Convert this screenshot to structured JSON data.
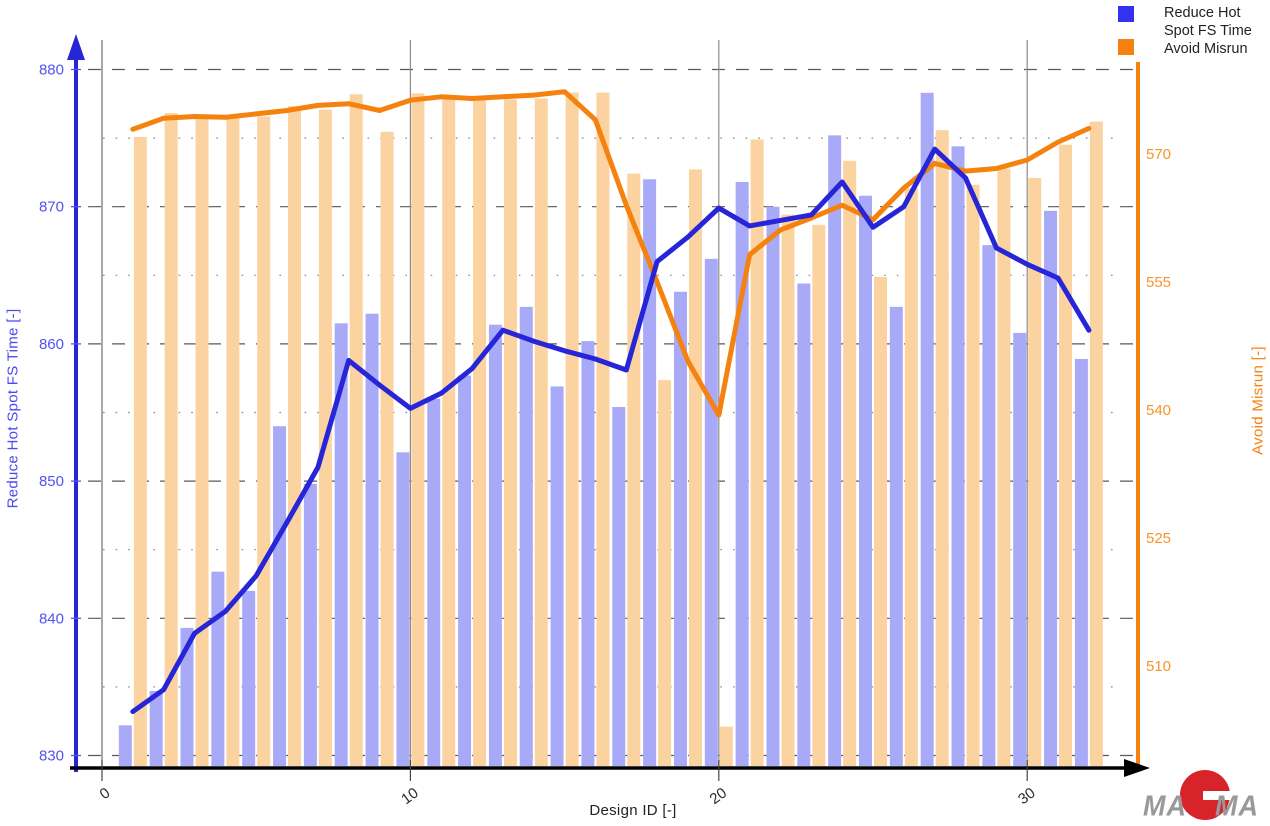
{
  "chart_data": {
    "type": "bar",
    "title": "",
    "xlabel": "Design ID [-]",
    "x_tick_labels": [
      "0",
      "10",
      "20",
      "30"
    ],
    "x_tick_values": [
      0,
      10,
      20,
      30
    ],
    "x": [
      1,
      2,
      3,
      4,
      5,
      6,
      7,
      8,
      9,
      10,
      11,
      12,
      13,
      14,
      15,
      16,
      17,
      18,
      19,
      20,
      21,
      22,
      23,
      24,
      25,
      26,
      27,
      28,
      29,
      30,
      31,
      32
    ],
    "left_axis": {
      "label": "Reduce Hot Spot FS Time [-]",
      "tick_labels": [
        "880",
        "870",
        "860",
        "850",
        "840",
        "830"
      ],
      "ticks": [
        880,
        870,
        860,
        850,
        840,
        830
      ],
      "minor_ticks": [
        875,
        865,
        855,
        845,
        835
      ],
      "ylim": [
        829,
        881
      ],
      "color": "#4a4af0"
    },
    "right_axis": {
      "label": "Avoid Misrun [-]",
      "tick_labels": [
        "570",
        "555",
        "540",
        "525",
        "510"
      ],
      "ticks": [
        570,
        555,
        540,
        525,
        510
      ],
      "ylim": [
        498,
        581
      ],
      "color": "#f5820f"
    },
    "grid": "major-dashed, minor-dotted, vertical at x ticks",
    "series": [
      {
        "name": "Reduce Hot Spot FS Time",
        "type": "bar",
        "axis": "left",
        "color": "#a9aaf7",
        "values": [
          832.2,
          834.7,
          839.3,
          843.4,
          842.0,
          854.0,
          849.8,
          861.5,
          862.2,
          852.1,
          856.0,
          857.7,
          861.4,
          862.7,
          856.9,
          860.2,
          855.4,
          872.0,
          863.8,
          866.2,
          871.8,
          870.0,
          864.4,
          875.2,
          870.8,
          862.7,
          878.3,
          874.4,
          867.2,
          860.8,
          869.7,
          858.9
        ]
      },
      {
        "name": "Reduce Hot Spot FS Time trend",
        "type": "line",
        "axis": "left",
        "color": "#2626d8",
        "values": [
          833.2,
          834.8,
          838.9,
          840.5,
          843.1,
          847.0,
          851.0,
          858.8,
          857.0,
          855.3,
          856.4,
          858.2,
          861.0,
          860.2,
          859.5,
          858.9,
          858.1,
          866.0,
          867.8,
          869.9,
          868.6,
          869.0,
          869.4,
          871.8,
          868.5,
          870.0,
          874.2,
          872.1,
          867.0,
          865.8,
          864.8,
          861.0
        ]
      },
      {
        "name": "Avoid Misrun",
        "type": "bar",
        "axis": "right",
        "color": "#fbd3a0",
        "values": [
          572.0,
          574.8,
          574.6,
          574.3,
          574.4,
          575.6,
          575.2,
          577.0,
          572.6,
          577.1,
          576.5,
          576.4,
          576.4,
          576.5,
          577.2,
          577.2,
          567.7,
          543.5,
          568.2,
          502.9,
          571.7,
          562.9,
          561.7,
          569.2,
          555.6,
          566.0,
          572.8,
          566.4,
          568.3,
          567.2,
          571.1,
          573.8
        ]
      },
      {
        "name": "Avoid Misrun trend",
        "type": "line",
        "axis": "right",
        "color": "#f5820f",
        "values": [
          572.9,
          574.2,
          574.4,
          574.3,
          574.7,
          575.1,
          575.7,
          575.9,
          575.1,
          576.3,
          576.7,
          576.5,
          576.7,
          576.9,
          577.3,
          574.0,
          564.0,
          555.0,
          545.7,
          539.4,
          558.2,
          561.1,
          562.5,
          564.0,
          562.3,
          566.0,
          568.9,
          568.0,
          568.3,
          569.3,
          571.4,
          573.0
        ]
      }
    ],
    "legend": {
      "position": "top-right",
      "items": [
        {
          "lines": [
            "Reduce Hot",
            "Spot FS Time"
          ],
          "color": "#3232f0"
        },
        {
          "lines": [
            "Avoid Misrun"
          ],
          "color": "#f5820f"
        }
      ]
    }
  },
  "logo": {
    "brand": "MAGMA",
    "ma_left": "MA",
    "g_letter": "G",
    "ma_right": "MA"
  }
}
